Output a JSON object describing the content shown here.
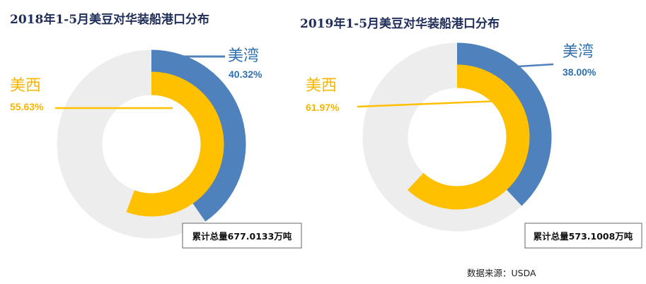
{
  "chart_data": [
    {
      "type": "pie",
      "title": "2018年1-5月美豆对华装船港口分布",
      "total": "累计总量677.0133万吨",
      "slices": [
        {
          "name": "美湾",
          "value": 40.32,
          "label": "40.32%",
          "color": "#4f81bd"
        },
        {
          "name": "美西",
          "value": 55.63,
          "label": "55.63%",
          "color": "#ffc000"
        }
      ]
    },
    {
      "type": "pie",
      "title": "2019年1-5月美豆对华装船港口分布",
      "total": "累计总量573.1008万吨",
      "slices": [
        {
          "name": "美湾",
          "value": 38.0,
          "label": "38.00%",
          "color": "#4f81bd"
        },
        {
          "name": "美西",
          "value": 61.97,
          "label": "61.97%",
          "color": "#ffc000"
        }
      ]
    }
  ],
  "source": "数据来源：USDA",
  "colors": {
    "ring_bg": "#ededed",
    "title": "#1f2d5a",
    "us_text": "#2f6fb0",
    "mx_text": "#f6b600"
  }
}
